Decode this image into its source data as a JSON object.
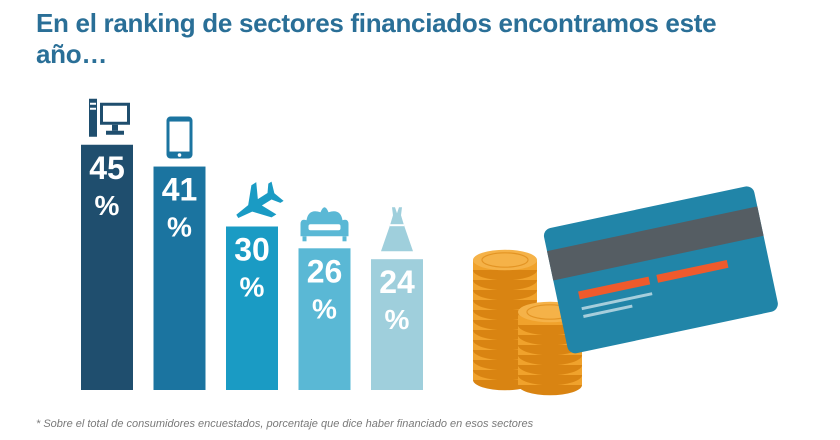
{
  "title": "En el ranking de sectores financiados encontramos este año…",
  "footnote": "* Sobre el total de consumidores encuestados, porcentaje que dice haber financiado en esos sectores",
  "chart_data": {
    "type": "bar",
    "categories_icons": [
      "computer-icon",
      "smartphone-icon",
      "airplane-icon",
      "sofa-icon",
      "dress-icon"
    ],
    "values": [
      45,
      41,
      30,
      26,
      24
    ],
    "unit": "%",
    "colors": [
      "#1f4e6e",
      "#1b74a0",
      "#1a9bc4",
      "#5ab8d5",
      "#9fcfdc"
    ]
  },
  "decorations": {
    "coin_color": "#f0a22c",
    "card_color": "#2185a8",
    "card_stripe_color": "#555d63",
    "card_accent_color": "#ef5a2c"
  }
}
